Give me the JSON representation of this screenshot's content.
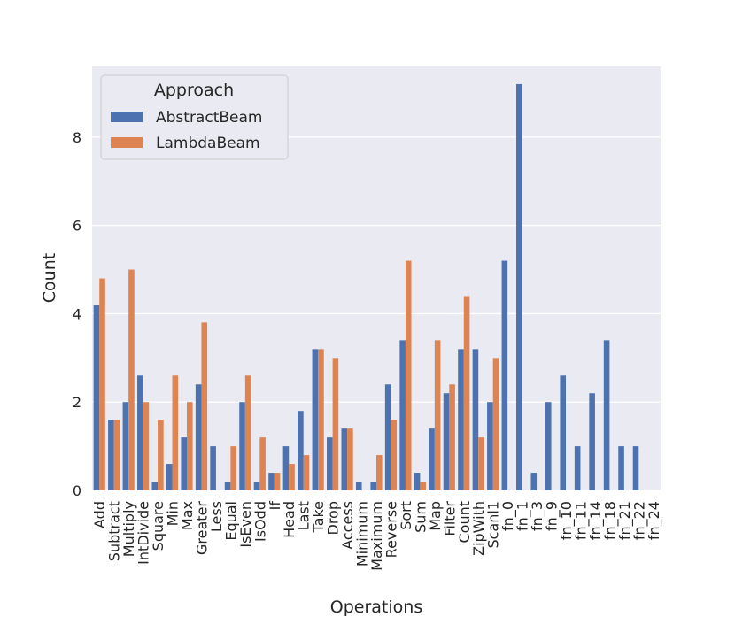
{
  "chart_data": {
    "type": "bar",
    "title": "",
    "xlabel": "Operations",
    "ylabel": "Count",
    "ylim": [
      0,
      9.6
    ],
    "yticks": [
      0,
      2,
      4,
      6,
      8
    ],
    "grid": true,
    "legend": {
      "title": "Approach",
      "placement": "top-left"
    },
    "categories": [
      "Add",
      "Subtract",
      "Multiply",
      "IntDivide",
      "Square",
      "Min",
      "Max",
      "Greater",
      "Less",
      "Equal",
      "IsEven",
      "IsOdd",
      "If",
      "Head",
      "Last",
      "Take",
      "Drop",
      "Access",
      "Minimum",
      "Maximum",
      "Reverse",
      "Sort",
      "Sum",
      "Map",
      "Filter",
      "Count",
      "ZipWith",
      "Scanl1",
      "fn_0",
      "fn_1",
      "fn_3",
      "fn_9",
      "fn_10",
      "fn_11",
      "fn_14",
      "fn_18",
      "fn_21",
      "fn_22",
      "fn_24"
    ],
    "series": [
      {
        "name": "AbstractBeam",
        "color": "#4c72b0",
        "values": [
          4.2,
          1.6,
          2.0,
          2.6,
          0.2,
          0.6,
          1.2,
          2.4,
          1.0,
          0.2,
          2.0,
          0.2,
          0.4,
          1.0,
          1.8,
          3.2,
          1.2,
          1.4,
          0.2,
          0.2,
          2.4,
          3.4,
          0.4,
          1.4,
          2.2,
          3.2,
          3.2,
          2.0,
          5.2,
          9.2,
          0.4,
          2.0,
          2.6,
          1.0,
          2.2,
          3.4,
          1.0,
          1.0,
          0.0
        ]
      },
      {
        "name": "LambdaBeam",
        "color": "#dd8452",
        "values": [
          4.8,
          1.6,
          5.0,
          2.0,
          1.6,
          2.6,
          2.0,
          3.8,
          0.0,
          1.0,
          2.6,
          1.2,
          0.4,
          0.6,
          0.8,
          3.2,
          3.0,
          1.4,
          0.0,
          0.8,
          1.6,
          5.2,
          0.2,
          3.4,
          2.4,
          4.4,
          1.2,
          3.0,
          0.0,
          0.0,
          0.0,
          0.0,
          0.0,
          0.0,
          0.0,
          0.0,
          0.0,
          0.0,
          0.0
        ]
      }
    ]
  }
}
